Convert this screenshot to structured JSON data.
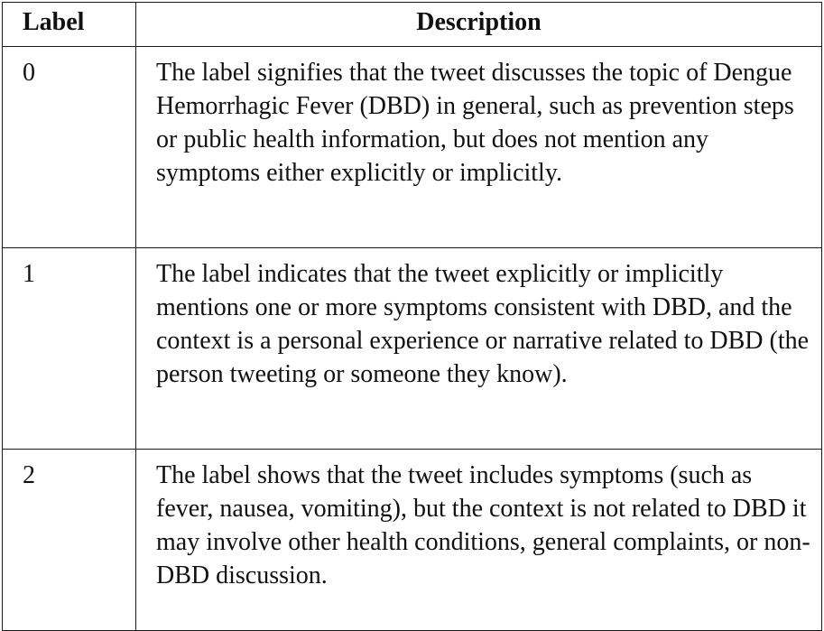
{
  "table": {
    "headers": {
      "label": "Label",
      "description": "Description"
    },
    "rows": [
      {
        "label": "0",
        "description": "The label signifies that the tweet discusses the topic of Dengue Hemorrhagic Fever (DBD) in general, such as prevention steps or public health information, but does not mention any symptoms either explicitly or implicitly."
      },
      {
        "label": "1",
        "description": "The label indicates that the tweet explicitly or implicitly mentions one or more symptoms consistent with DBD, and the context is a personal experience or narrative related to DBD (the person tweeting or someone they know)."
      },
      {
        "label": "2",
        "description": "The label shows that the tweet includes symptoms (such as fever, nausea, vomiting), but the context is not related to DBD it may involve other health conditions, general complaints, or non-DBD discussion."
      }
    ]
  }
}
